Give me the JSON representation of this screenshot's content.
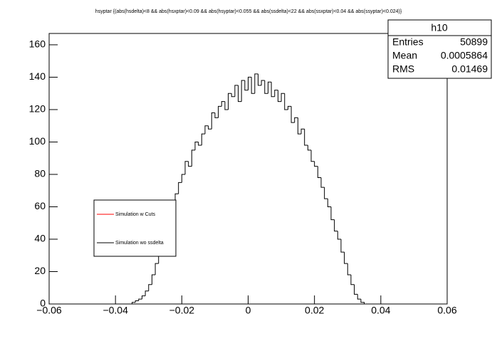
{
  "chart_data": {
    "type": "histogram",
    "title": "hsyptar {(abs(hsdelta)<8 && abs(hsxptar)<0.09 && abs(hsyptar)<0.055 && abs(ssdelta)<22 && abs(ssxptar)<0.04 && abs(ssyptar)<0.024)}",
    "color": "#000000",
    "bins": [
      -0.035,
      -0.034,
      -0.033,
      -0.032,
      -0.031,
      -0.03,
      -0.029,
      -0.028,
      -0.027,
      -0.026,
      -0.025,
      -0.024,
      -0.023,
      -0.022,
      -0.021,
      -0.02,
      -0.019,
      -0.018,
      -0.017,
      -0.016,
      -0.015,
      -0.014,
      -0.013,
      -0.012,
      -0.011,
      -0.01,
      -0.009,
      -0.008,
      -0.007,
      -0.006,
      -0.005,
      -0.004,
      -0.003,
      -0.002,
      -0.001,
      0,
      0.001,
      0.002,
      0.003,
      0.004,
      0.005,
      0.006,
      0.007,
      0.008,
      0.009,
      0.01,
      0.011,
      0.012,
      0.013,
      0.014,
      0.015,
      0.016,
      0.017,
      0.018,
      0.019,
      0.02,
      0.021,
      0.022,
      0.023,
      0.024,
      0.025,
      0.026,
      0.027,
      0.028,
      0.029,
      0.03,
      0.031,
      0.032,
      0.033,
      0.034,
      0.035
    ],
    "counts": [
      1,
      2,
      3,
      5,
      8,
      12,
      18,
      25,
      30,
      38,
      45,
      55,
      62,
      68,
      75,
      80,
      88,
      85,
      95,
      100,
      98,
      105,
      110,
      108,
      118,
      115,
      122,
      125,
      120,
      130,
      128,
      135,
      125,
      138,
      132,
      140,
      130,
      142,
      135,
      138,
      130,
      137,
      128,
      132,
      125,
      130,
      120,
      122,
      112,
      115,
      105,
      108,
      98,
      95,
      88,
      85,
      78,
      72,
      65,
      60,
      52,
      45,
      40,
      32,
      25,
      18,
      12,
      6,
      3,
      1
    ],
    "xlim": [
      -0.06,
      0.06
    ],
    "xticks": [
      {
        "value": -0.06,
        "label": "−0.06"
      },
      {
        "value": -0.04,
        "label": "−0.04"
      },
      {
        "value": -0.02,
        "label": "−0.02"
      },
      0,
      0.02,
      0.04,
      0.06
    ],
    "ylim": [
      0,
      167
    ],
    "yticks": [
      0,
      20,
      40,
      60,
      80,
      100,
      120,
      140,
      160
    ],
    "legend": [
      {
        "name": "Simulation w Cuts",
        "color": "#ff0000"
      },
      {
        "name": "Simulation wo ssdelta",
        "color": "#000000"
      }
    ],
    "stats": {
      "name": "h10",
      "rows": [
        [
          "Entries",
          "50899"
        ],
        [
          "Mean",
          "0.0005864"
        ],
        [
          "RMS",
          "0.01469"
        ]
      ]
    }
  }
}
